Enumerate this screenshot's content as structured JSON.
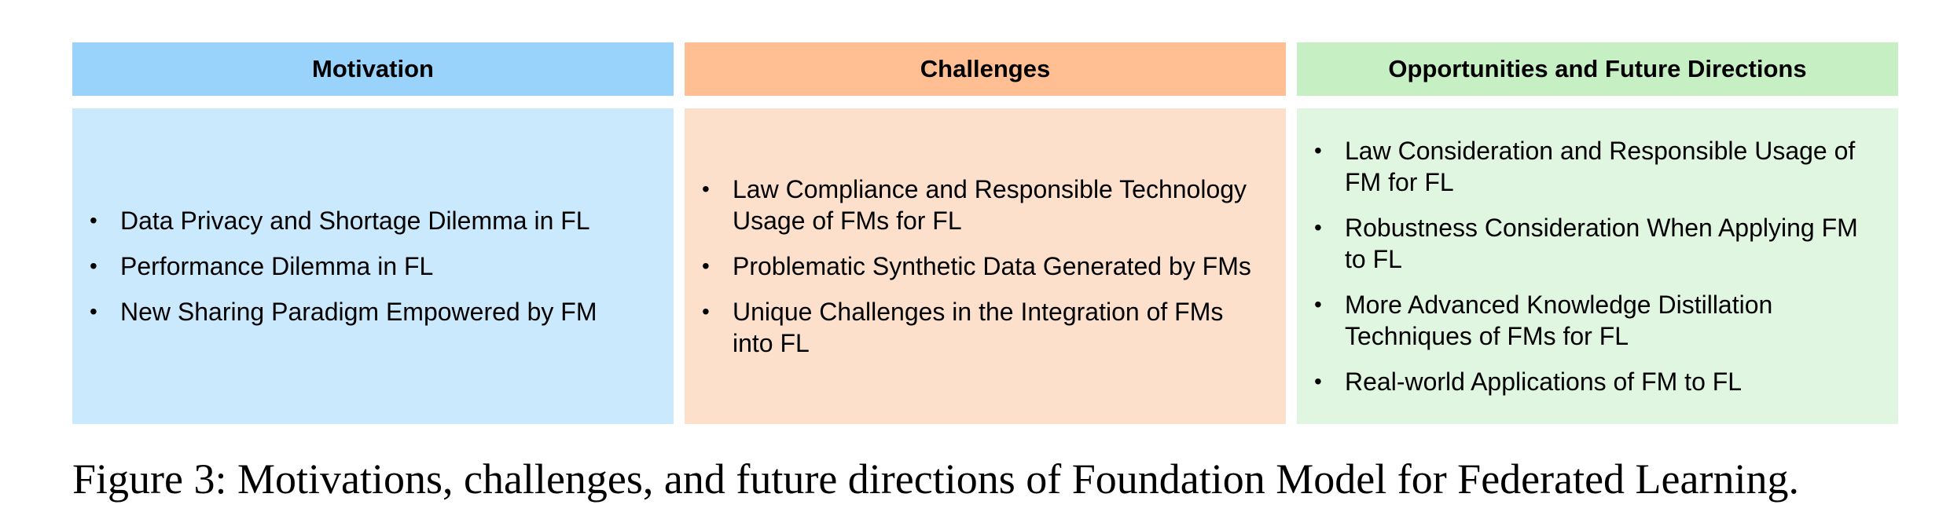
{
  "columns": {
    "motivation": {
      "title": "Motivation",
      "items": [
        "Data Privacy and Shortage Dilemma in FL",
        "Performance Dilemma in FL",
        "New Sharing Paradigm Empowered by FM"
      ]
    },
    "challenges": {
      "title": "Challenges",
      "items": [
        "Law Compliance and Responsible Technology Usage of FMs for FL",
        "Problematic Synthetic Data Generated by FMs",
        "Unique Challenges in the Integration of FMs into FL"
      ]
    },
    "opportunities": {
      "title": "Opportunities and Future Directions",
      "items": [
        "Law Consideration and Responsible Usage of FM for FL",
        "Robustness Consideration When Applying FM to FL",
        "More Advanced Knowledge Distillation Techniques of FMs for FL",
        "Real-world Applications of FM to FL"
      ]
    }
  },
  "bullet_glyph": "•",
  "colors": {
    "motivation_header": "#99d3fb",
    "motivation_body": "#cbe9fd",
    "challenges_header": "#ffbf92",
    "challenges_body": "#fde0cb",
    "opportunities_header": "#c6efc4",
    "opportunities_body": "#e0f6e0"
  },
  "caption": "Figure 3: Motivations, challenges, and future directions of Foundation Model for Federated Learning."
}
